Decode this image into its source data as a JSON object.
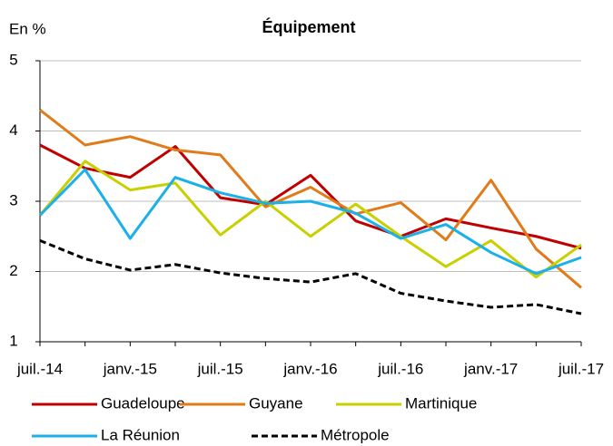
{
  "chart_data": {
    "type": "line",
    "title": "Équipement",
    "y_axis_label": "En %",
    "categories": [
      "juil.-14",
      null,
      "janv.-15",
      null,
      "juil.-15",
      null,
      "janv.-16",
      null,
      "juil.-16",
      null,
      "janv.-17",
      null,
      "juil.-17"
    ],
    "series": [
      {
        "name": "Guadeloupe",
        "color": "#c00000",
        "dashed": false,
        "values": [
          3.8,
          3.47,
          3.34,
          3.78,
          3.05,
          2.95,
          3.37,
          2.72,
          2.5,
          2.75,
          2.62,
          2.5,
          2.33
        ]
      },
      {
        "name": "Guyane",
        "color": "#e07b1a",
        "dashed": false,
        "values": [
          4.3,
          3.8,
          3.92,
          3.73,
          3.66,
          2.92,
          3.2,
          2.82,
          2.98,
          2.45,
          3.3,
          2.32,
          1.77
        ]
      },
      {
        "name": "Martinique",
        "color": "#c8d000",
        "dashed": false,
        "values": [
          2.8,
          3.57,
          3.16,
          3.26,
          2.52,
          3.0,
          2.5,
          2.96,
          2.5,
          2.07,
          2.44,
          1.92,
          2.38
        ]
      },
      {
        "name": "La Réunion",
        "color": "#1ab0e8",
        "dashed": false,
        "values": [
          2.8,
          3.45,
          2.47,
          3.34,
          3.12,
          2.97,
          3.0,
          2.83,
          2.47,
          2.67,
          2.27,
          1.97,
          2.2
        ]
      },
      {
        "name": "Métropole",
        "color": "#000000",
        "dashed": true,
        "values": [
          2.44,
          2.18,
          2.02,
          2.1,
          1.98,
          1.9,
          1.85,
          1.97,
          1.69,
          1.58,
          1.49,
          1.53,
          1.4
        ]
      }
    ],
    "ylim": [
      1,
      5
    ],
    "yticks": [
      1,
      2,
      3,
      4,
      5
    ],
    "grid": true
  }
}
